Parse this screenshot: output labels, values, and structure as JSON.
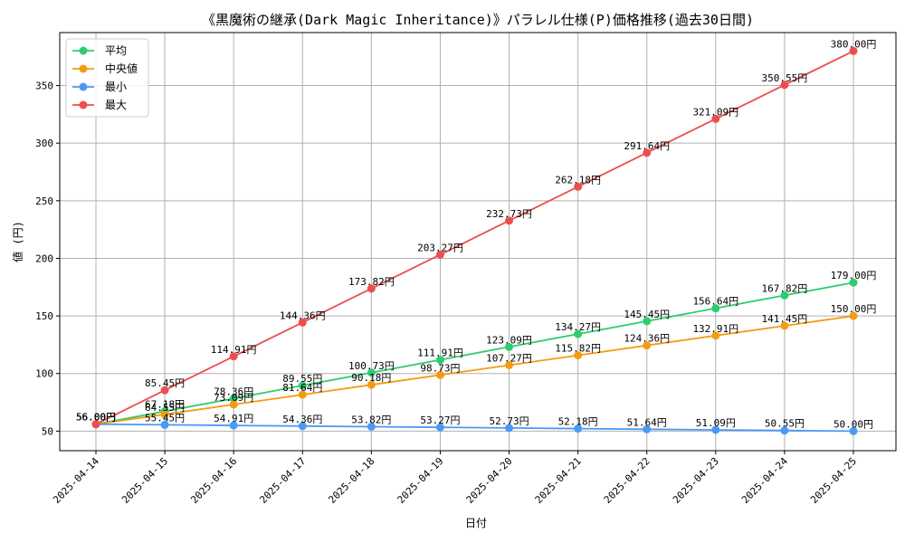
{
  "chart_data": {
    "type": "line",
    "title": "《黒魔術の継承(Dark Magic Inheritance)》パラレル仕様(P)価格推移(過去30日間)",
    "xlabel": "日付",
    "ylabel": "値 (円)",
    "categories": [
      "2025-04-14",
      "2025-04-15",
      "2025-04-16",
      "2025-04-17",
      "2025-04-18",
      "2025-04-19",
      "2025-04-20",
      "2025-04-21",
      "2025-04-22",
      "2025-04-23",
      "2025-04-24",
      "2025-04-25"
    ],
    "ylim": [
      33,
      396
    ],
    "yticks": [
      50,
      100,
      150,
      200,
      250,
      300,
      350
    ],
    "grid": true,
    "legend_position": "top-left",
    "series": [
      {
        "name": "平均",
        "color": "#2ecc71",
        "values": [
          56.0,
          67.18,
          78.36,
          89.55,
          100.73,
          111.91,
          123.09,
          134.27,
          145.45,
          156.64,
          167.82,
          179.0
        ],
        "labels": [
          "56.00円",
          "67.18円",
          "78.36円",
          "89.55円",
          "100.73円",
          "111.91円",
          "123.09円",
          "134.27円",
          "145.45円",
          "156.64円",
          "167.82円",
          "179.00円"
        ]
      },
      {
        "name": "中央値",
        "color": "#f39c12",
        "values": [
          56.0,
          64.55,
          73.09,
          81.64,
          90.18,
          98.73,
          107.27,
          115.82,
          124.36,
          132.91,
          141.45,
          150.0
        ],
        "labels": [
          "56.00円",
          "64.55円",
          "73.09円",
          "81.64円",
          "90.18円",
          "98.73円",
          "107.27円",
          "115.82円",
          "124.36円",
          "132.91円",
          "141.45円",
          "150.00円"
        ]
      },
      {
        "name": "最小",
        "color": "#4a9af5",
        "values": [
          56.0,
          55.45,
          54.91,
          54.36,
          53.82,
          53.27,
          52.73,
          52.18,
          51.64,
          51.09,
          50.55,
          50.0
        ],
        "labels": [
          "56.00円",
          "55.45円",
          "54.91円",
          "54.36円",
          "53.82円",
          "53.27円",
          "52.73円",
          "52.18円",
          "51.64円",
          "51.09円",
          "50.55円",
          "50.00円"
        ]
      },
      {
        "name": "最大",
        "color": "#ec4e4e",
        "values": [
          56.0,
          85.45,
          114.91,
          144.36,
          173.82,
          203.27,
          232.73,
          262.18,
          291.64,
          321.09,
          350.55,
          380.0
        ],
        "labels": [
          "56.00円",
          "85.45円",
          "114.91円",
          "144.36円",
          "173.82円",
          "203.27円",
          "232.73円",
          "262.18円",
          "291.64円",
          "321.09円",
          "350.55円",
          "380.00円"
        ]
      }
    ]
  }
}
